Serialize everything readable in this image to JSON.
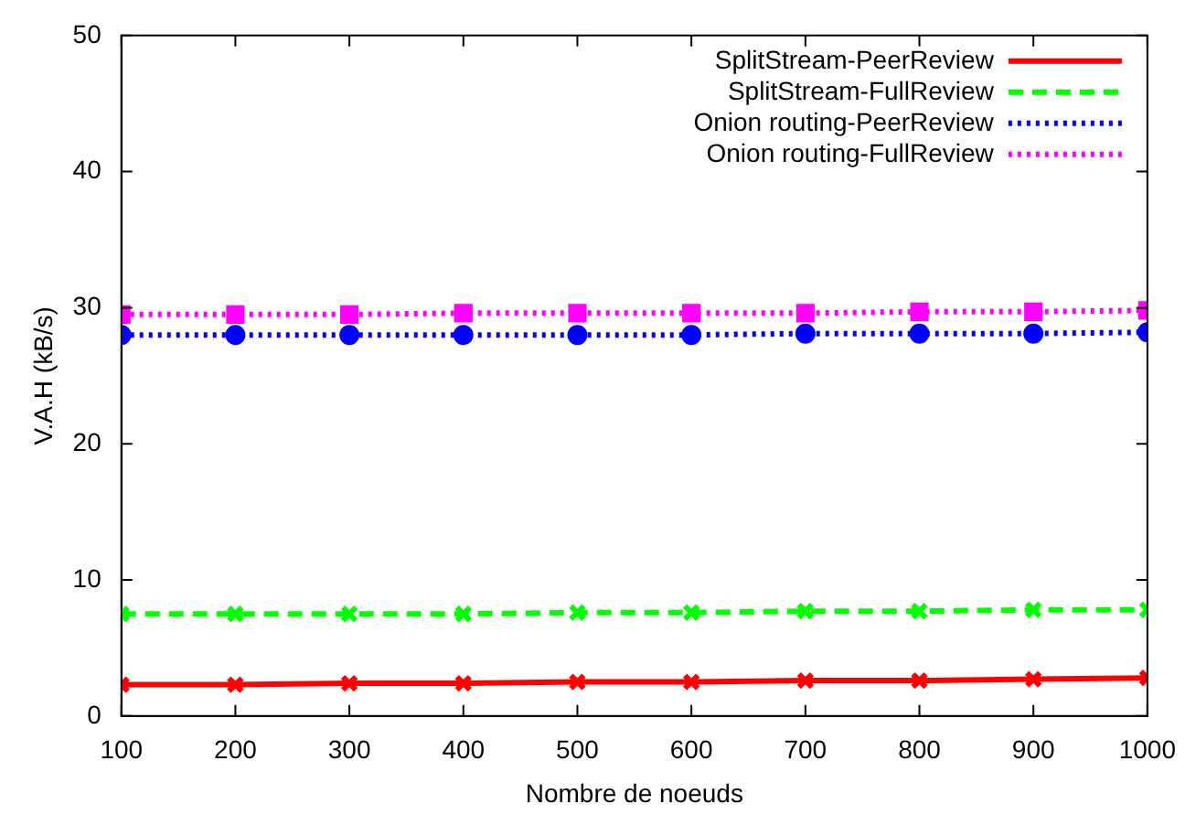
{
  "chart_data": {
    "type": "line",
    "xlabel": "Nombre de noeuds",
    "ylabel": "V.A.H (kB/s)",
    "x": [
      100,
      200,
      300,
      400,
      500,
      600,
      700,
      800,
      900,
      1000
    ],
    "xlim": [
      100,
      1000
    ],
    "xticks": [
      100,
      200,
      300,
      400,
      500,
      600,
      700,
      800,
      900,
      1000
    ],
    "ylim": [
      0,
      50
    ],
    "yticks": [
      0,
      10,
      20,
      30,
      40,
      50
    ],
    "grid": false,
    "legend": "top right",
    "series": [
      {
        "name": "SplitStream-PeerReview",
        "color": "#ff0000",
        "marker": "cross",
        "line_style": "solid",
        "values": [
          2.3,
          2.3,
          2.4,
          2.4,
          2.5,
          2.5,
          2.6,
          2.6,
          2.7,
          2.8
        ]
      },
      {
        "name": "SplitStream-FullReview",
        "color": "#00ff00",
        "marker": "cross",
        "line_style": "dashed",
        "values": [
          7.5,
          7.5,
          7.5,
          7.5,
          7.6,
          7.6,
          7.7,
          7.7,
          7.8,
          7.8
        ]
      },
      {
        "name": "Onion routing-PeerReview",
        "color": "#0000ff",
        "marker": "circle",
        "line_style": "dotted",
        "values": [
          28.0,
          28.0,
          28.0,
          28.0,
          28.0,
          28.0,
          28.1,
          28.1,
          28.1,
          28.2
        ]
      },
      {
        "name": "Onion routing-FullReview",
        "color": "#ff00ff",
        "marker": "square",
        "line_style": "dotted",
        "values": [
          29.5,
          29.5,
          29.5,
          29.6,
          29.6,
          29.6,
          29.6,
          29.7,
          29.7,
          29.8
        ]
      }
    ]
  }
}
